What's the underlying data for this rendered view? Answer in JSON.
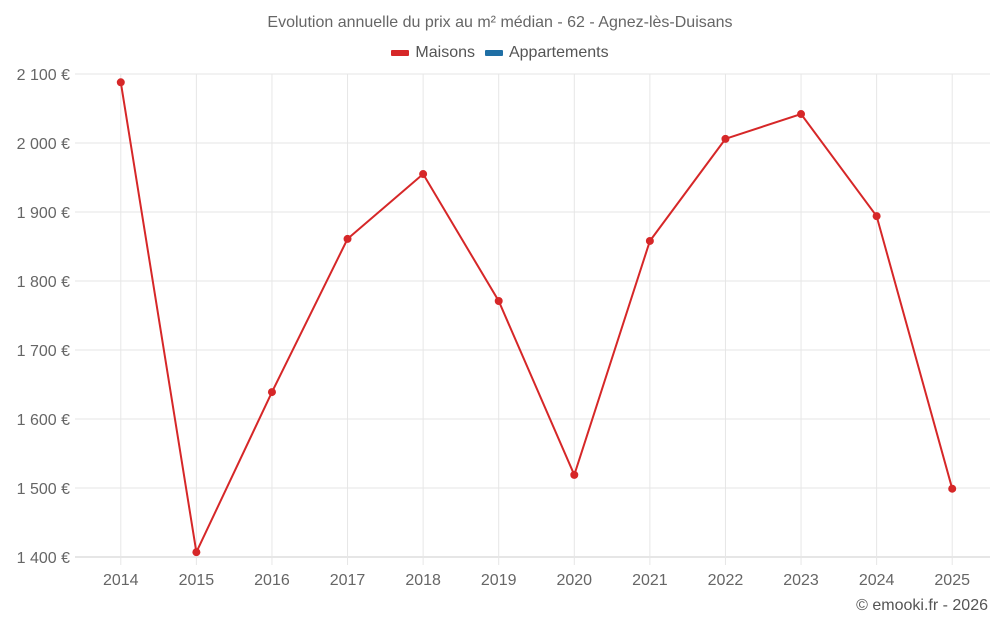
{
  "chart_data": {
    "type": "line",
    "title": "Evolution annuelle du prix au m² médian - 62 - Agnez-lès-Duisans",
    "xlabel": "",
    "ylabel": "",
    "categories": [
      "2014",
      "2015",
      "2016",
      "2017",
      "2018",
      "2019",
      "2020",
      "2021",
      "2022",
      "2023",
      "2024",
      "2025"
    ],
    "series": [
      {
        "name": "Maisons",
        "color": "#d62728",
        "values": [
          2088,
          1407,
          1639,
          1861,
          1955,
          1771,
          1519,
          1858,
          2006,
          2042,
          1894,
          1499
        ]
      },
      {
        "name": "Appartements",
        "color": "#1f6fa5",
        "values": []
      }
    ],
    "ylim": [
      1400,
      2100
    ],
    "yticks": [
      1400,
      1500,
      1600,
      1700,
      1800,
      1900,
      2000,
      2100
    ],
    "ytick_labels": [
      "1 400 €",
      "1 500 €",
      "1 600 €",
      "1 700 €",
      "1 800 €",
      "1 900 €",
      "2 000 €",
      "2 100 €"
    ],
    "grid": true,
    "legend_position": "top"
  },
  "legend": {
    "items": [
      {
        "label": "Maisons",
        "color": "#d62728"
      },
      {
        "label": "Appartements",
        "color": "#1f6fa5"
      }
    ]
  },
  "credit": "© emooki.fr - 2026"
}
